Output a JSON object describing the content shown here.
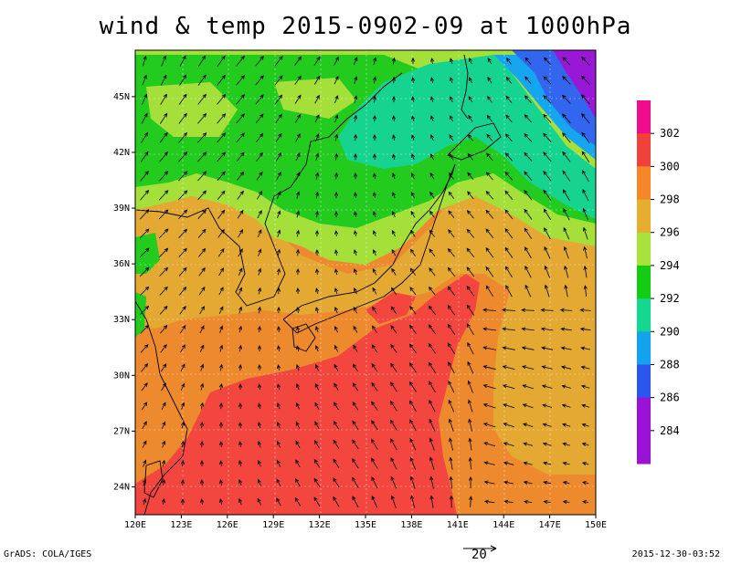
{
  "title": "wind & temp 2015-0902-09 at 1000hPa",
  "footer": {
    "credit": "GrADS: COLA/IGES",
    "timestamp": "2015-12-30-03:52"
  },
  "map": {
    "lon_range": [
      120,
      150
    ],
    "lat_range": [
      22.5,
      47.5
    ],
    "grid": true,
    "lon_labels": [
      "120E",
      "123E",
      "126E",
      "129E",
      "132E",
      "135E",
      "138E",
      "141E",
      "144E",
      "147E",
      "150E"
    ],
    "lat_labels": [
      "24N",
      "27N",
      "30N",
      "33N",
      "36N",
      "39N",
      "42N",
      "45N"
    ],
    "vector_reference": {
      "label": "20"
    }
  },
  "colorbar": {
    "labels": [
      "302",
      "300",
      "298",
      "296",
      "294",
      "292",
      "290",
      "288",
      "286",
      "284"
    ],
    "colors": [
      "#f00c8c",
      "#f0413a",
      "#f5862a",
      "#e6ad2f",
      "#a8e33c",
      "#13cc13",
      "#14d88f",
      "#12a2ee",
      "#2a56ee",
      "#9a12d6"
    ]
  },
  "colors": {
    "red": "#f2463e",
    "orange": "#ed8a2e",
    "gold": "#e3a933",
    "lightgreen": "#a4df3a",
    "green": "#23cb1e",
    "teal": "#17d390",
    "lightblue": "#16a6f0",
    "blue": "#3266ee",
    "purple": "#9818d6"
  }
}
